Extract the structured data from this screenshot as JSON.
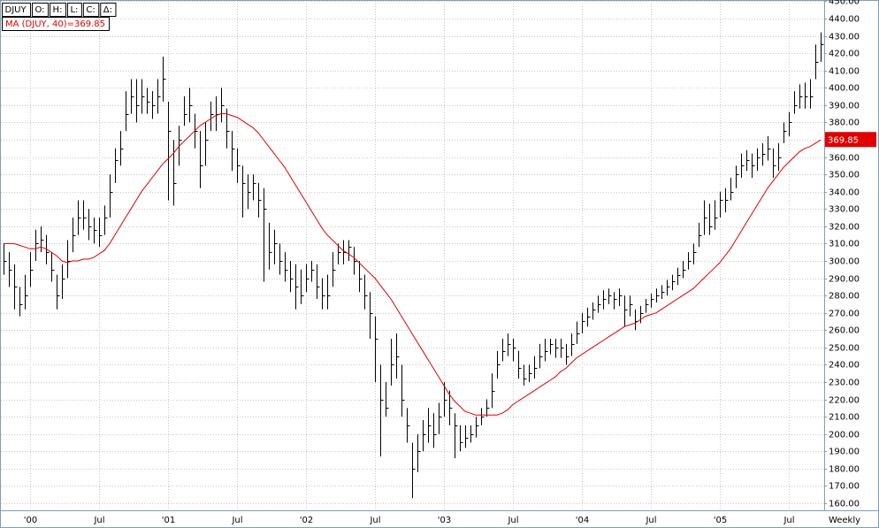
{
  "chart_data": {
    "type": "ohlc",
    "fields": [
      "DJUY",
      "O:",
      "H:",
      "L:",
      "C:",
      "Δ:"
    ],
    "period": "Weekly",
    "categories": [
      null,
      null,
      null,
      null,
      null,
      "'00",
      null,
      null,
      null,
      null,
      null,
      null,
      null,
      null,
      null,
      null,
      null,
      null,
      "Jul",
      null,
      null,
      null,
      null,
      null,
      null,
      null,
      null,
      null,
      null,
      null,
      null,
      "'01",
      null,
      null,
      null,
      null,
      null,
      null,
      null,
      null,
      null,
      null,
      null,
      null,
      "Jul",
      null,
      null,
      null,
      null,
      null,
      null,
      null,
      null,
      null,
      null,
      null,
      null,
      "'02",
      null,
      null,
      null,
      null,
      null,
      null,
      null,
      null,
      null,
      null,
      null,
      null,
      "Jul",
      null,
      null,
      null,
      null,
      null,
      null,
      null,
      null,
      null,
      null,
      null,
      null,
      "'03",
      null,
      null,
      null,
      null,
      null,
      null,
      null,
      null,
      null,
      null,
      null,
      null,
      "Jul",
      null,
      null,
      null,
      null,
      null,
      null,
      null,
      null,
      null,
      null,
      null,
      null,
      "'04",
      null,
      null,
      null,
      null,
      null,
      null,
      null,
      null,
      null,
      null,
      null,
      null,
      "Jul",
      null,
      null,
      null,
      null,
      null,
      null,
      null,
      null,
      null,
      null,
      null,
      null,
      "'05",
      null,
      null,
      null,
      null,
      null,
      null,
      null,
      null,
      null,
      null,
      null,
      null,
      "Jul",
      null,
      null,
      null,
      null,
      null,
      null
    ],
    "high": [
      310,
      305,
      298,
      285,
      292,
      305,
      318,
      320,
      315,
      305,
      292,
      298,
      312,
      325,
      335,
      335,
      330,
      325,
      325,
      332,
      350,
      365,
      375,
      398,
      405,
      405,
      405,
      400,
      398,
      405,
      418,
      392,
      370,
      378,
      395,
      400,
      385,
      375,
      380,
      392,
      395,
      400,
      388,
      375,
      365,
      355,
      350,
      350,
      345,
      342,
      322,
      318,
      310,
      305,
      300,
      298,
      295,
      298,
      300,
      298,
      290,
      292,
      305,
      310,
      312,
      312,
      308,
      300,
      292,
      282,
      268,
      240,
      230,
      255,
      258,
      240,
      215,
      195,
      200,
      208,
      215,
      212,
      218,
      230,
      225,
      212,
      205,
      205,
      205,
      210,
      215,
      220,
      235,
      248,
      255,
      258,
      255,
      248,
      240,
      240,
      245,
      252,
      255,
      255,
      255,
      255,
      252,
      258,
      265,
      270,
      273,
      276,
      280,
      283,
      284,
      282,
      284,
      280,
      280,
      272,
      274,
      278,
      281,
      284,
      286,
      289,
      292,
      296,
      300,
      305,
      310,
      322,
      335,
      333,
      335,
      340,
      342,
      348,
      355,
      362,
      364,
      362,
      365,
      368,
      372,
      365,
      368,
      380,
      386,
      398,
      402,
      403,
      405,
      425,
      432
    ],
    "low": [
      292,
      285,
      272,
      268,
      272,
      285,
      300,
      305,
      298,
      288,
      272,
      278,
      290,
      305,
      315,
      318,
      312,
      310,
      308,
      315,
      325,
      345,
      355,
      375,
      385,
      380,
      385,
      385,
      382,
      385,
      392,
      335,
      332,
      355,
      378,
      380,
      365,
      342,
      355,
      375,
      375,
      380,
      365,
      352,
      345,
      325,
      330,
      335,
      325,
      288,
      295,
      298,
      292,
      288,
      282,
      272,
      275,
      282,
      288,
      278,
      272,
      272,
      285,
      298,
      298,
      300,
      292,
      282,
      272,
      255,
      230,
      187,
      210,
      228,
      232,
      210,
      195,
      163,
      178,
      190,
      195,
      192,
      200,
      210,
      205,
      186,
      190,
      192,
      195,
      198,
      205,
      210,
      215,
      232,
      242,
      245,
      242,
      232,
      228,
      230,
      232,
      238,
      242,
      246,
      244,
      244,
      240,
      245,
      252,
      258,
      262,
      266,
      270,
      272,
      275,
      272,
      274,
      262,
      268,
      260,
      264,
      270,
      273,
      276,
      278,
      280,
      283,
      286,
      290,
      295,
      298,
      308,
      315,
      315,
      318,
      325,
      328,
      335,
      342,
      348,
      352,
      348,
      352,
      355,
      358,
      348,
      352,
      368,
      372,
      385,
      388,
      388,
      388,
      405,
      415
    ],
    "close": [
      300,
      295,
      285,
      275,
      280,
      295,
      310,
      312,
      305,
      295,
      280,
      290,
      300,
      315,
      325,
      325,
      320,
      318,
      315,
      325,
      340,
      358,
      365,
      385,
      395,
      390,
      395,
      392,
      390,
      395,
      405,
      375,
      345,
      370,
      385,
      390,
      375,
      355,
      370,
      385,
      385,
      390,
      375,
      365,
      355,
      345,
      340,
      345,
      335,
      330,
      305,
      310,
      300,
      295,
      290,
      285,
      280,
      290,
      295,
      285,
      280,
      280,
      295,
      305,
      305,
      308,
      300,
      290,
      280,
      270,
      255,
      220,
      215,
      240,
      245,
      220,
      205,
      180,
      190,
      200,
      205,
      200,
      210,
      220,
      215,
      205,
      195,
      198,
      200,
      205,
      210,
      215,
      225,
      240,
      248,
      252,
      250,
      238,
      232,
      235,
      238,
      245,
      248,
      252,
      250,
      250,
      245,
      252,
      258,
      265,
      268,
      272,
      275,
      278,
      280,
      278,
      280,
      272,
      275,
      265,
      270,
      275,
      278,
      280,
      282,
      285,
      288,
      292,
      295,
      300,
      305,
      315,
      325,
      320,
      325,
      335,
      335,
      340,
      350,
      355,
      358,
      355,
      360,
      362,
      365,
      355,
      360,
      375,
      380,
      390,
      395,
      395,
      395,
      415,
      425
    ],
    "color": "#000000",
    "series": [
      {
        "name": "MA (DJUY, 40)=369.85",
        "color": "#e00000",
        "values": [
          310,
          310,
          310,
          309,
          308,
          307,
          307,
          308,
          307,
          305,
          303,
          300,
          299,
          300,
          300,
          301,
          301,
          302,
          304,
          306,
          310,
          315,
          320,
          325,
          330,
          335,
          340,
          344,
          348,
          352,
          356,
          359,
          362,
          366,
          369,
          372,
          375,
          378,
          380,
          382,
          384,
          385,
          385,
          384,
          383,
          381,
          379,
          377,
          374,
          370,
          366,
          362,
          358,
          354,
          349,
          344,
          339,
          334,
          329,
          324,
          319,
          315,
          312,
          309,
          306,
          304,
          302,
          299,
          296,
          293,
          290,
          286,
          282,
          278,
          273,
          268,
          263,
          258,
          253,
          248,
          243,
          238,
          233,
          228,
          223,
          219,
          216,
          213,
          212,
          211,
          211,
          211,
          211,
          211,
          212,
          214,
          217,
          219,
          221,
          223,
          225,
          227,
          229,
          231,
          233,
          236,
          238,
          241,
          244,
          246,
          248,
          250,
          252,
          254,
          256,
          258,
          260,
          262,
          263,
          264,
          266,
          268,
          269,
          270,
          272,
          274,
          276,
          278,
          280,
          282,
          284,
          287,
          290,
          293,
          296,
          299,
          303,
          307,
          312,
          317,
          322,
          327,
          332,
          337,
          342,
          346,
          350,
          354,
          357,
          360,
          363,
          365,
          366,
          368,
          369.85
        ]
      }
    ],
    "ylim": [
      155.9,
      450.2
    ],
    "yticks": [
      {
        "value": 160,
        "label": "160.00"
      },
      {
        "value": 170,
        "label": "170.00"
      },
      {
        "value": 180,
        "label": "180.00"
      },
      {
        "value": 190,
        "label": "190.00"
      },
      {
        "value": 200,
        "label": "200.00"
      },
      {
        "value": 210,
        "label": "210.00"
      },
      {
        "value": 220,
        "label": "220.00"
      },
      {
        "value": 230,
        "label": "230.00"
      },
      {
        "value": 240,
        "label": "240.00"
      },
      {
        "value": 250,
        "label": "250.00"
      },
      {
        "value": 260,
        "label": "260.00"
      },
      {
        "value": 270,
        "label": "270.00"
      },
      {
        "value": 280,
        "label": "280.00"
      },
      {
        "value": 290,
        "label": "290.00"
      },
      {
        "value": 300,
        "label": "300.00"
      },
      {
        "value": 310,
        "label": "310.00"
      },
      {
        "value": 320,
        "label": "320.00"
      },
      {
        "value": 330,
        "label": "330.00"
      },
      {
        "value": 340,
        "label": "340.00"
      },
      {
        "value": 350,
        "label": "350.00"
      },
      {
        "value": 360,
        "label": "360.00"
      },
      {
        "value": 370,
        "label": "370.00"
      },
      {
        "value": 380,
        "label": "380.00"
      },
      {
        "value": 390,
        "label": "390.00"
      },
      {
        "value": 400,
        "label": "400.00"
      },
      {
        "value": 410,
        "label": "410.00"
      },
      {
        "value": 420,
        "label": "420.00"
      },
      {
        "value": 430,
        "label": "430.00"
      },
      {
        "value": 440,
        "label": "440.00"
      },
      {
        "value": 450,
        "label": "450.00"
      }
    ],
    "grid": true
  }
}
